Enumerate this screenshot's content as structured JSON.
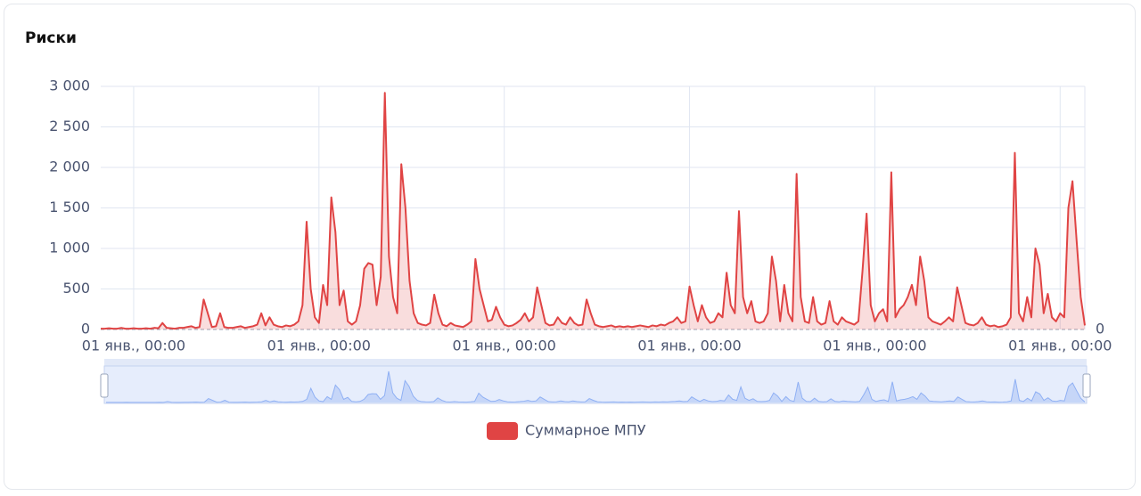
{
  "title": "Риски",
  "chart_data": {
    "type": "line",
    "series": [
      {
        "name": "Суммарное МПУ",
        "color": "#e04444",
        "values": [
          10,
          10,
          15,
          10,
          10,
          20,
          10,
          10,
          15,
          10,
          10,
          15,
          10,
          20,
          15,
          80,
          20,
          15,
          10,
          20,
          20,
          30,
          40,
          20,
          30,
          370,
          200,
          30,
          40,
          200,
          30,
          20,
          20,
          30,
          40,
          20,
          30,
          40,
          60,
          200,
          50,
          150,
          60,
          40,
          30,
          50,
          40,
          60,
          100,
          300,
          1330,
          500,
          150,
          80,
          550,
          300,
          1630,
          1200,
          300,
          480,
          100,
          60,
          100,
          300,
          750,
          820,
          800,
          300,
          650,
          2920,
          900,
          400,
          200,
          2040,
          1500,
          600,
          200,
          80,
          60,
          50,
          80,
          430,
          200,
          60,
          40,
          80,
          50,
          40,
          30,
          60,
          100,
          870,
          500,
          300,
          100,
          120,
          280,
          150,
          60,
          40,
          50,
          80,
          120,
          200,
          100,
          150,
          520,
          300,
          80,
          50,
          60,
          150,
          80,
          60,
          150,
          80,
          50,
          60,
          370,
          200,
          60,
          40,
          30,
          40,
          50,
          30,
          40,
          30,
          40,
          30,
          40,
          50,
          40,
          30,
          50,
          40,
          60,
          50,
          80,
          100,
          150,
          80,
          100,
          530,
          300,
          100,
          300,
          150,
          80,
          100,
          200,
          150,
          700,
          300,
          200,
          1460,
          400,
          200,
          350,
          100,
          80,
          100,
          200,
          900,
          600,
          100,
          550,
          200,
          100,
          1920,
          400,
          100,
          80,
          400,
          100,
          60,
          80,
          350,
          100,
          60,
          150,
          100,
          80,
          60,
          100,
          720,
          1430,
          300,
          100,
          200,
          250,
          100,
          1940,
          150,
          250,
          300,
          400,
          550,
          300,
          900,
          600,
          150,
          100,
          80,
          60,
          100,
          150,
          100,
          520,
          300,
          80,
          60,
          50,
          80,
          150,
          60,
          40,
          50,
          30,
          40,
          60,
          150,
          2180,
          200,
          100,
          400,
          150,
          1000,
          800,
          200,
          440,
          150,
          100,
          200,
          150,
          1500,
          1830,
          1100,
          400,
          50
        ]
      }
    ],
    "categories": [
      null,
      null,
      null,
      null,
      null,
      null,
      null,
      null,
      "01 янв., 00:00",
      null,
      null,
      null,
      null,
      null,
      null,
      null,
      null,
      null,
      null,
      null,
      null,
      null,
      null,
      null,
      null,
      null,
      null,
      null,
      null,
      null,
      null,
      null,
      null,
      null,
      null,
      null,
      null,
      null,
      null,
      null,
      null,
      null,
      null,
      null,
      null,
      null,
      null,
      null,
      null,
      null,
      null,
      null,
      null,
      "01 янв., 00:00",
      null,
      null,
      null,
      null,
      null,
      null,
      null,
      null,
      null,
      null,
      null,
      null,
      null,
      null,
      null,
      null,
      null,
      null,
      null,
      null,
      null,
      null,
      null,
      null,
      null,
      null,
      null,
      null,
      null,
      null,
      null,
      null,
      null,
      null,
      null,
      null,
      null,
      null,
      null,
      null,
      null,
      null,
      null,
      null,
      "01 янв., 00:00",
      null,
      null,
      null,
      null,
      null,
      null,
      null,
      null,
      null,
      null,
      null,
      null,
      null,
      null,
      null,
      null,
      null,
      null,
      null,
      null,
      null,
      null,
      null,
      null,
      null,
      null,
      null,
      null,
      null,
      null,
      null,
      null,
      null,
      null,
      null,
      null,
      null,
      null,
      null,
      null,
      null,
      null,
      null,
      null,
      "01 янв., 00:00",
      null,
      null,
      null,
      null,
      null,
      null,
      null,
      null,
      null,
      null,
      null,
      null,
      null,
      null,
      null,
      null,
      null,
      null,
      null,
      null,
      null,
      null,
      null,
      null,
      null,
      null,
      null,
      null,
      null,
      null,
      null,
      null,
      null,
      null,
      null,
      null,
      null,
      null,
      null,
      null,
      null,
      null,
      null,
      null,
      "01 янв., 00:00",
      null,
      null,
      null,
      null,
      null,
      null,
      null,
      null,
      null,
      null,
      null,
      null,
      null,
      null,
      null,
      null,
      null,
      null,
      null,
      null,
      null,
      null,
      null,
      null,
      null,
      null,
      null,
      null,
      null,
      null,
      null,
      null,
      null,
      null,
      null,
      null,
      null,
      null,
      null,
      null,
      null,
      null,
      null,
      null,
      "01 янв., 00:00",
      null,
      null,
      null,
      null,
      null,
      null
    ],
    "ylim": [
      0,
      3000
    ],
    "yticks": [
      0,
      {
        "value": 500,
        "label": "500"
      },
      {
        "value": 1000,
        "label": "1 000"
      },
      {
        "value": 1500,
        "label": "1 500"
      },
      {
        "value": 2000,
        "label": "2 000"
      },
      {
        "value": 2500,
        "label": "2 500"
      },
      {
        "value": 3000,
        "label": "3 000"
      }
    ],
    "y2lim": [
      0,
      3000
    ],
    "y2ticks": [
      0
    ],
    "grid": true,
    "legend": "bottom"
  }
}
